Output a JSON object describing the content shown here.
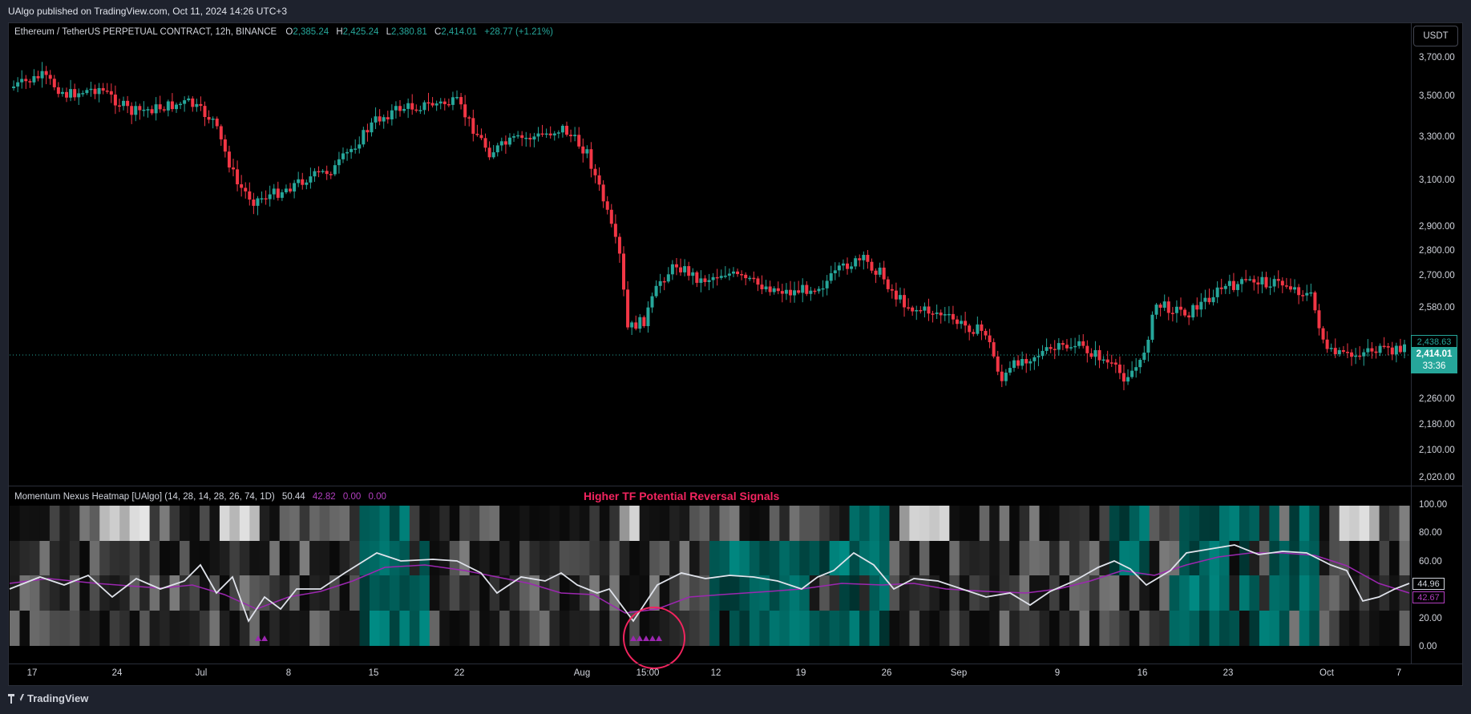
{
  "header": {
    "published": "UAlgo published on TradingView.com, Oct 11, 2024 14:26 UTC+3"
  },
  "legend": {
    "symbol": "Ethereum / TetherUS PERPETUAL CONTRACT, 12h, BINANCE",
    "o_label": "O",
    "o_val": "2,385.24",
    "h_label": "H",
    "h_val": "2,425.24",
    "l_label": "L",
    "l_val": "2,380.81",
    "c_label": "C",
    "c_val": "2,414.01",
    "change": "+28.77 (+1.21%)"
  },
  "currency_button": "USDT",
  "price_axis": {
    "ticks": [
      "3,700.00",
      "3,500.00",
      "3,300.00",
      "3,100.00",
      "2,900.00",
      "2,800.00",
      "2,700.00",
      "2,580.00",
      "2,260.00",
      "2,180.00",
      "2,100.00",
      "2,020.00"
    ],
    "label_high": "2,438.63",
    "label_last": "2,414.01",
    "label_countdown": "33:36"
  },
  "indicator": {
    "name": "Momentum Nexus Heatmap [UAlgo] (14, 28, 14, 28, 26, 74, 1D)",
    "v1": "50.44",
    "v2": "42.82",
    "v3": "0.00",
    "v4": "0.00",
    "signal_title": "Higher TF Potential Reversal Signals",
    "axis_ticks": [
      "100.00",
      "80.00",
      "60.00",
      "20.00",
      "0.00"
    ],
    "label_white": "44.96",
    "label_purple": "42.67"
  },
  "time_axis": [
    "17",
    "24",
    "Jul",
    "8",
    "15",
    "22",
    "Aug",
    "15:00",
    "12",
    "19",
    "26",
    "Sep",
    "9",
    "16",
    "23",
    "Oct",
    "7"
  ],
  "footer": {
    "brand": "TradingView"
  },
  "colors": {
    "up": "#26a69a",
    "down": "#f23645",
    "accent": "#b23fbf",
    "signal": "#f2245f",
    "teal": "#00b0a0"
  }
}
